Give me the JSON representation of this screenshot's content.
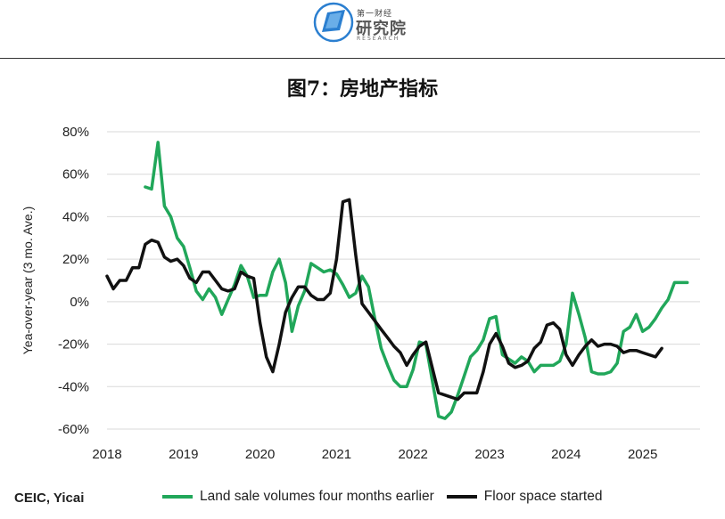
{
  "header": {
    "logo_small": "第一财经",
    "logo_big": "研究院",
    "logo_tiny": "RESEARCH"
  },
  "title": "图7：房地产指标",
  "source": "CEIC, Yicai",
  "colors": {
    "green": "#21a75a",
    "black": "#111111",
    "grid": "#d9d9d9"
  },
  "chart_data": {
    "type": "line",
    "title": "图7：房地产指标",
    "xlabel": "",
    "ylabel": "Yea-over-year (3 mo. Ave.)",
    "xlim": [
      2018.0,
      2025.75
    ],
    "ylim": [
      -60,
      80
    ],
    "x_ticks": [
      "2018",
      "2019",
      "2020",
      "2021",
      "2022",
      "2023",
      "2024",
      "2025"
    ],
    "y_ticks": [
      "80%",
      "60%",
      "40%",
      "20%",
      "0%",
      "-20%",
      "-40%",
      "-60%"
    ],
    "y_tick_values": [
      80,
      60,
      40,
      20,
      0,
      -20,
      -40,
      -60
    ],
    "grid": "horizontal",
    "legend": "bottom",
    "series": [
      {
        "name": "Land sale volumes four months earlier",
        "color": "#21a75a",
        "x": [
          2018.5,
          2018.583,
          2018.667,
          2018.75,
          2018.833,
          2018.917,
          2019.0,
          2019.083,
          2019.167,
          2019.25,
          2019.333,
          2019.417,
          2019.5,
          2019.583,
          2019.667,
          2019.75,
          2019.833,
          2019.917,
          2020.0,
          2020.083,
          2020.167,
          2020.25,
          2020.333,
          2020.417,
          2020.5,
          2020.583,
          2020.667,
          2020.75,
          2020.833,
          2020.917,
          2021.0,
          2021.083,
          2021.167,
          2021.25,
          2021.333,
          2021.417,
          2021.5,
          2021.583,
          2021.667,
          2021.75,
          2021.833,
          2021.917,
          2022.0,
          2022.083,
          2022.167,
          2022.25,
          2022.333,
          2022.417,
          2022.5,
          2022.583,
          2022.667,
          2022.75,
          2022.833,
          2022.917,
          2023.0,
          2023.083,
          2023.167,
          2023.25,
          2023.333,
          2023.417,
          2023.5,
          2023.583,
          2023.667,
          2023.75,
          2023.833,
          2023.917,
          2024.0,
          2024.083,
          2024.167,
          2024.25,
          2024.333,
          2024.417,
          2024.5,
          2024.583,
          2024.667,
          2024.75,
          2024.833,
          2024.917,
          2025.0,
          2025.083,
          2025.167,
          2025.25,
          2025.333,
          2025.417,
          2025.5,
          2025.583
        ],
        "values": [
          54,
          53,
          75,
          45,
          40,
          30,
          26,
          16,
          5,
          1,
          6,
          2,
          -6,
          1,
          8,
          17,
          12,
          2,
          3,
          3,
          14,
          20,
          9,
          -14,
          -2,
          5,
          18,
          16,
          14,
          15,
          13,
          8,
          2,
          4,
          12,
          7,
          -8,
          -22,
          -30,
          -37,
          -40,
          -40,
          -32,
          -19,
          -20,
          -37,
          -54,
          -55,
          -52,
          -44,
          -35,
          -26,
          -23,
          -18,
          -8,
          -7,
          -25,
          -27,
          -29,
          -26,
          -28,
          -33,
          -30,
          -30,
          -30,
          -28,
          -20,
          4,
          -6,
          -17,
          -33,
          -34,
          -34,
          -33,
          -29,
          -14,
          -12,
          -6,
          -14,
          -12,
          -8,
          -3,
          1,
          9,
          9,
          9
        ]
      },
      {
        "name": "Floor space started",
        "color": "#111111",
        "x": [
          2018.0,
          2018.083,
          2018.167,
          2018.25,
          2018.333,
          2018.417,
          2018.5,
          2018.583,
          2018.667,
          2018.75,
          2018.833,
          2018.917,
          2019.0,
          2019.083,
          2019.167,
          2019.25,
          2019.333,
          2019.417,
          2019.5,
          2019.583,
          2019.667,
          2019.75,
          2019.833,
          2019.917,
          2020.0,
          2020.083,
          2020.167,
          2020.25,
          2020.333,
          2020.417,
          2020.5,
          2020.583,
          2020.667,
          2020.75,
          2020.833,
          2020.917,
          2021.0,
          2021.083,
          2021.167,
          2021.25,
          2021.333,
          2021.417,
          2021.5,
          2021.583,
          2021.667,
          2021.75,
          2021.833,
          2021.917,
          2022.0,
          2022.083,
          2022.167,
          2022.25,
          2022.333,
          2022.417,
          2022.5,
          2022.583,
          2022.667,
          2022.75,
          2022.833,
          2022.917,
          2023.0,
          2023.083,
          2023.167,
          2023.25,
          2023.333,
          2023.417,
          2023.5,
          2023.583,
          2023.667,
          2023.75,
          2023.833,
          2023.917,
          2024.0,
          2024.083,
          2024.167,
          2024.25,
          2024.333,
          2024.417,
          2024.5,
          2024.583,
          2024.667,
          2024.75,
          2024.833,
          2024.917,
          2025.0,
          2025.083,
          2025.167,
          2025.25
        ],
        "values": [
          12,
          6,
          10,
          10,
          16,
          16,
          27,
          29,
          28,
          21,
          19,
          20,
          17,
          11,
          9,
          14,
          14,
          10,
          6,
          5,
          6,
          14,
          12,
          11,
          -10,
          -26,
          -33,
          -20,
          -5,
          2,
          7,
          7,
          3,
          1,
          1,
          4,
          20,
          47,
          48,
          22,
          -1,
          -5,
          -9,
          -13,
          -17,
          -21,
          -24,
          -30,
          -25,
          -21,
          -19,
          -31,
          -43,
          -44,
          -45,
          -46,
          -43,
          -43,
          -43,
          -33,
          -20,
          -15,
          -21,
          -29,
          -31,
          -30,
          -28,
          -22,
          -19,
          -11,
          -10,
          -13,
          -25,
          -30,
          -25,
          -21,
          -18,
          -21,
          -20,
          -20,
          -21,
          -24,
          -23,
          -23,
          -24,
          -25,
          -26,
          -22
        ]
      }
    ]
  }
}
